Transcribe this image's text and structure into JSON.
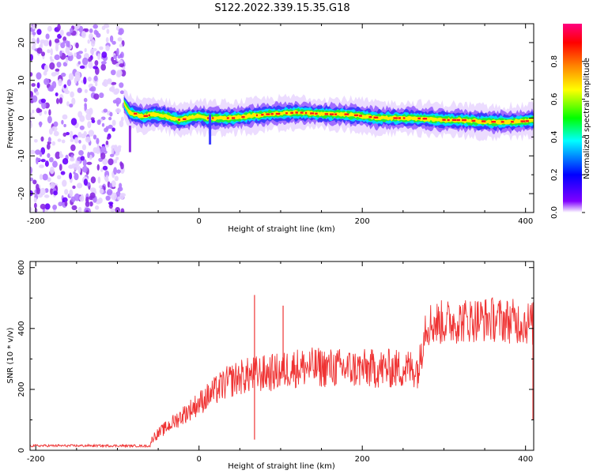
{
  "figure": {
    "title": "S122.2022.339.15.35.G18"
  },
  "chart_data": [
    {
      "type": "heatmap",
      "xlabel": "Height of straight line (km)",
      "ylabel": "Frequency (Hz)",
      "xlim": [
        -207,
        410
      ],
      "ylim": [
        -25,
        25
      ],
      "x_ticks": [
        -200,
        0,
        200,
        400
      ],
      "y_ticks": [
        -20,
        -10,
        0,
        10,
        20
      ],
      "colorbar": {
        "label": "Normalized spectral amplitude",
        "range": [
          0,
          1
        ],
        "ticks": [
          "0.0",
          "0.2",
          "0.4",
          "0.6",
          "0.8"
        ],
        "colors": [
          "#ffffff",
          "#8000ff",
          "#0000ff",
          "#00ffff",
          "#00ff00",
          "#ffff00",
          "#ff8000",
          "#ff0000",
          "#ff00ff"
        ]
      },
      "noise_region_x": [
        -207,
        -92
      ],
      "ridge": {
        "x": [
          -92,
          -85,
          -70,
          -55,
          -40,
          -25,
          -10,
          0,
          10,
          20,
          40,
          60,
          80,
          100,
          120,
          140,
          160,
          180,
          200,
          220,
          240,
          260,
          280,
          300,
          320,
          340,
          360,
          380,
          400,
          410
        ],
        "freq": [
          4,
          1.5,
          0.5,
          1,
          0.5,
          -0.5,
          0.2,
          0.5,
          0,
          0,
          0,
          0.5,
          1,
          1.2,
          1.5,
          1.2,
          1,
          1,
          0.5,
          0,
          0,
          0,
          -0.2,
          -0.5,
          -0.5,
          -0.8,
          -1,
          -1,
          -0.8,
          -0.5
        ]
      }
    },
    {
      "type": "line",
      "xlabel": "Height of straight line (km)",
      "ylabel": "SNR (10 * v/v)",
      "xlim": [
        -207,
        410
      ],
      "ylim": [
        0,
        620
      ],
      "x_ticks": [
        -200,
        0,
        200,
        400
      ],
      "y_ticks": [
        0,
        200,
        400,
        600
      ],
      "series": [
        {
          "color": "#ef3333",
          "x": [
            -207,
            -150,
            -100,
            -60,
            -57,
            -55,
            -50,
            -40,
            -30,
            -20,
            -10,
            0,
            10,
            20,
            30,
            40,
            50,
            60,
            70,
            80,
            90,
            100,
            105,
            110,
            130,
            150,
            170,
            190,
            210,
            230,
            250,
            270,
            275,
            278,
            300,
            320,
            340,
            360,
            380,
            400,
            410
          ],
          "y": [
            15,
            15,
            15,
            14,
            40,
            45,
            55,
            75,
            95,
            115,
            135,
            155,
            175,
            195,
            215,
            230,
            240,
            245,
            250,
            252,
            255,
            258,
            262,
            270,
            272,
            272,
            270,
            268,
            268,
            268,
            268,
            270,
            400,
            415,
            420,
            425,
            430,
            430,
            425,
            420,
            415
          ]
        }
      ],
      "spikes": [
        {
          "x": 68,
          "y": 510
        },
        {
          "x": 68,
          "y": 35
        },
        {
          "x": 103,
          "y": 475
        }
      ]
    }
  ]
}
